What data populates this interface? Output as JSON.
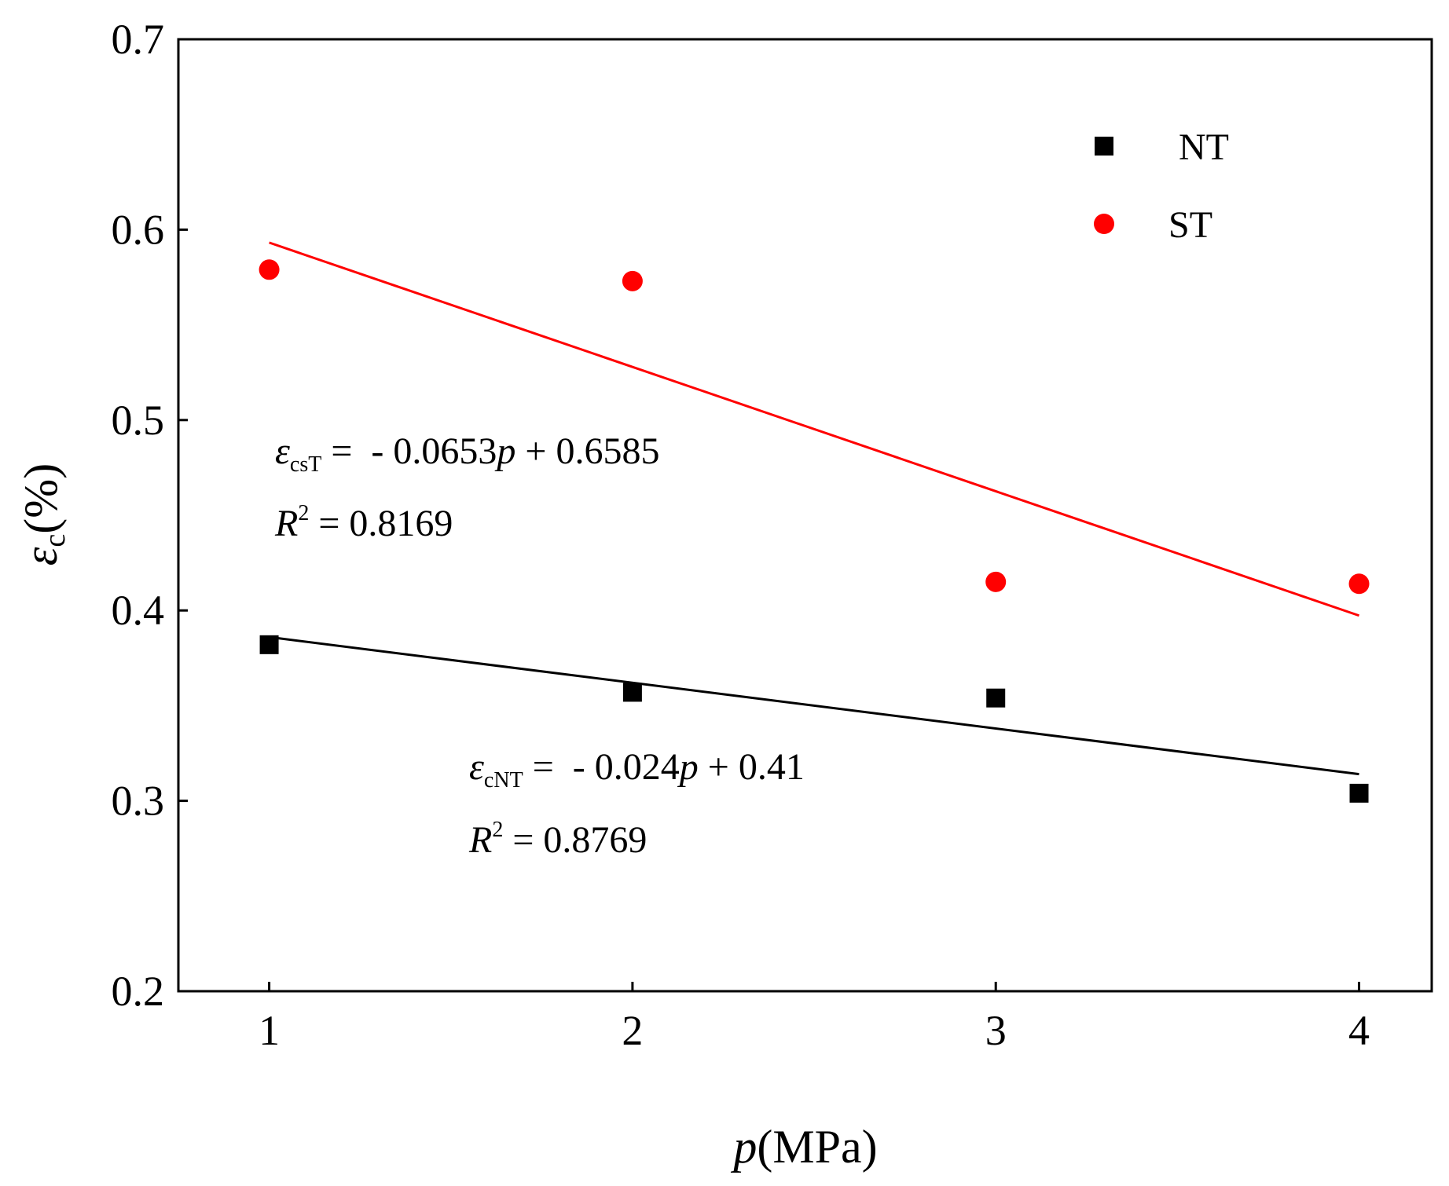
{
  "chart_data": {
    "type": "scatter",
    "xlabel": {
      "italic": "p",
      "rest": "(MPa)"
    },
    "ylabel": {
      "symbol": "ε",
      "subscript": "c",
      "rest": "(%)"
    },
    "xlim": [
      0.75,
      4.2
    ],
    "ylim": [
      0.2,
      0.7
    ],
    "xticks": [
      1,
      2,
      3,
      4
    ],
    "yticks": [
      0.2,
      0.3,
      0.4,
      0.5,
      0.6,
      0.7
    ],
    "xtick_labels": [
      "1",
      "2",
      "3",
      "4"
    ],
    "ytick_labels": [
      "0.2",
      "0.3",
      "0.4",
      "0.5",
      "0.6",
      "0.7"
    ],
    "grid": false,
    "legend_position": "top-right",
    "series": [
      {
        "name": "NT",
        "marker": "square",
        "color": "#000000",
        "x": [
          1,
          2,
          3,
          4
        ],
        "y": [
          0.382,
          0.357,
          0.354,
          0.304
        ],
        "fit": {
          "slope": -0.024,
          "intercept": 0.41,
          "x_range": [
            1,
            4
          ]
        }
      },
      {
        "name": "ST",
        "marker": "circle",
        "color": "#ff0000",
        "x": [
          1,
          2,
          3,
          4
        ],
        "y": [
          0.579,
          0.573,
          0.415,
          0.414
        ],
        "fit": {
          "slope": -0.0653,
          "intercept": 0.6585,
          "x_range": [
            1,
            4
          ]
        }
      }
    ],
    "annotations": [
      {
        "id": "st-fit",
        "eq_symbol": "ε",
        "eq_subscript": "csT",
        "eq_rest_a": " =  - 0.0653",
        "eq_var": "p",
        "eq_rest_b": " + 0.6585",
        "r2_symbol": "R",
        "r2_sup": "2",
        "r2_rest": " = 0.8169"
      },
      {
        "id": "nt-fit",
        "eq_symbol": "ε",
        "eq_subscript": "cNT",
        "eq_rest_a": " =  - 0.024",
        "eq_var": "p",
        "eq_rest_b": " + 0.41",
        "r2_symbol": "R",
        "r2_sup": "2",
        "r2_rest": " = 0.8769"
      }
    ]
  }
}
